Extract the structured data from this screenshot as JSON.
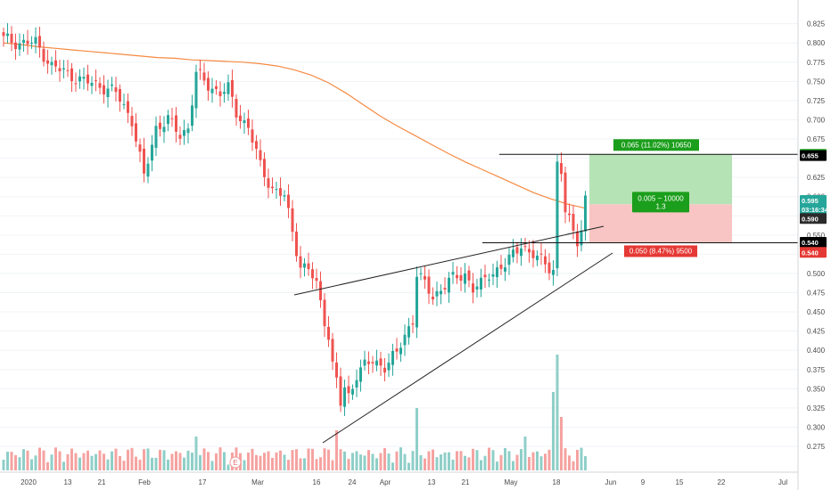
{
  "chart_data": {
    "type": "candlestick",
    "price_axis": {
      "range": [
        0.26,
        0.835
      ],
      "ticks": [
        0.825,
        0.8,
        0.775,
        0.75,
        0.725,
        0.7,
        0.675,
        0.65,
        0.625,
        0.6,
        0.575,
        0.55,
        0.525,
        0.5,
        0.475,
        0.45,
        0.425,
        0.4,
        0.375,
        0.35,
        0.325,
        0.3,
        0.275
      ],
      "tick_labels": [
        "0.825",
        "0.800",
        "0.775",
        "0.750",
        "0.725",
        "0.700",
        "0.675",
        "0.650",
        "0.625",
        "0.600",
        "0.575",
        "0.550",
        "0.525",
        "0.500",
        "0.475",
        "0.450",
        "0.425",
        "0.400",
        "0.375",
        "0.350",
        "0.325",
        "0.300",
        "0.275"
      ]
    },
    "time_axis": {
      "labels": [
        "2020",
        "13",
        "21",
        "Feb",
        "17",
        "Mar",
        "16",
        "24",
        "Apr",
        "13",
        "21",
        "May",
        "18",
        "Jun",
        "9",
        "15",
        "22",
        "Jul"
      ]
    },
    "price_tags": [
      {
        "label": "0.655",
        "value": 0.655,
        "color": "#1b9e1b"
      },
      {
        "label": "0.655",
        "value": 0.6535,
        "color": "#000000"
      },
      {
        "label": "0.595",
        "value": 0.595,
        "color": "#26a69a"
      },
      {
        "label": "03:16:34",
        "value": 0.5835,
        "color": "#26a69a"
      },
      {
        "label": "0.590",
        "value": 0.5715,
        "color": "#2b2b2b"
      },
      {
        "label": "0.540",
        "value": 0.5405,
        "color": "#000000"
      },
      {
        "label": "0.540",
        "value": 0.5275,
        "color": "#e53935"
      }
    ],
    "position": {
      "target_label": "0.065 (11.02%) 10650",
      "stop_label": "0.050 (8.47%) 9500",
      "center_label_1": "0.005 ~ 10000",
      "center_label_2": "1.3",
      "entry": 0.59,
      "target": 0.655,
      "stop": 0.54,
      "target_color": "#1b9e1b",
      "stop_color": "#e53935"
    },
    "horizontal_lines": [
      0.655,
      0.54
    ],
    "trendlines": [
      {
        "name": "upper",
        "from": {
          "t": 23,
          "p": 0.478
        },
        "to": {
          "t": 86,
          "p": 0.562
        }
      },
      {
        "name": "lower",
        "from": {
          "t": 38,
          "p": 0.292
        },
        "to": {
          "t": 88,
          "p": 0.535
        }
      }
    ],
    "moving_average": {
      "color": "#f58a42",
      "values": [
        0.8,
        0.798,
        0.795,
        0.793,
        0.791,
        0.789,
        0.787,
        0.785,
        0.783,
        0.781,
        0.78,
        0.778,
        0.777,
        0.776,
        0.775,
        0.773,
        0.77,
        0.765,
        0.758,
        0.748,
        0.735,
        0.72,
        0.705,
        0.692,
        0.68,
        0.668,
        0.656,
        0.645,
        0.635,
        0.625,
        0.615,
        0.605,
        0.597,
        0.59,
        0.585
      ]
    },
    "event_marker": "E",
    "colors": {
      "up": "#26a69a",
      "down": "#ef5350",
      "vol_up": "#8fcfc8",
      "vol_down": "#f5a3a1"
    }
  }
}
